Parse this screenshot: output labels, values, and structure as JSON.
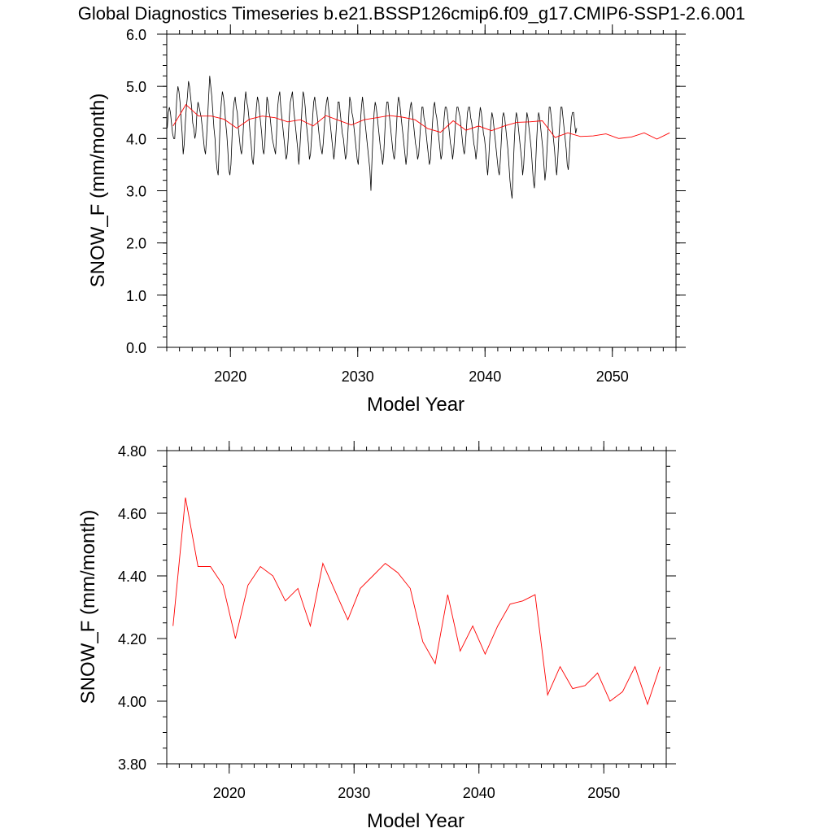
{
  "title": "Global Diagnostics Timeseries b.e21.BSSP126cmip6.f09_g17.CMIP6-SSP1-2.6.001",
  "colors": {
    "monthly": "#000000",
    "annual": "#ff0000"
  },
  "chart_data": [
    {
      "type": "line",
      "xlabel": "Model Year",
      "ylabel": "SNOW_F (mm/month)",
      "xlim": [
        2015,
        2055
      ],
      "ylim": [
        0,
        6
      ],
      "xticks": [
        2020,
        2030,
        2040,
        2050
      ],
      "yticks": [
        0,
        1,
        2,
        3,
        4,
        5,
        6
      ],
      "ytick_labels": [
        "0.0",
        "1.0",
        "2.0",
        "3.0",
        "4.0",
        "5.0",
        "6.0"
      ],
      "grid": false,
      "series": [
        {
          "kind": "monthly",
          "x_start": 2015.04,
          "x_step": 0.0833333,
          "values": [
            4.2,
            4.5,
            4.6,
            4.5,
            4.3,
            4.1,
            4.0,
            4.0,
            4.4,
            4.8,
            5.0,
            4.9,
            4.7,
            4.4,
            4.1,
            3.7,
            3.9,
            4.3,
            4.6,
            4.8,
            5.1,
            5.0,
            4.8,
            4.6,
            4.3,
            4.2,
            4.0,
            4.1,
            4.5,
            4.7,
            4.6,
            4.5,
            4.4,
            4.2,
            4.0,
            3.8,
            3.7,
            4.0,
            4.4,
            4.8,
            5.2,
            5.0,
            4.8,
            4.5,
            4.2,
            4.0,
            3.6,
            3.4,
            3.3,
            3.8,
            4.4,
            4.7,
            4.9,
            4.8,
            4.6,
            4.3,
            4.1,
            3.8,
            3.4,
            3.3,
            3.5,
            4.0,
            4.5,
            4.7,
            4.8,
            4.6,
            4.5,
            4.2,
            4.0,
            3.8,
            3.7,
            3.9,
            4.3,
            4.7,
            4.9,
            4.7,
            4.6,
            4.4,
            4.1,
            3.9,
            3.6,
            3.5,
            3.8,
            4.3,
            4.6,
            4.8,
            4.7,
            4.5,
            4.3,
            4.1,
            3.8,
            3.7,
            3.9,
            4.4,
            4.8,
            4.7,
            4.5,
            4.4,
            4.2,
            4.0,
            3.9,
            3.8,
            3.7,
            4.1,
            4.6,
            4.8,
            4.9,
            4.6,
            4.4,
            4.2,
            4.0,
            3.8,
            3.6,
            3.7,
            4.0,
            4.4,
            4.7,
            4.8,
            4.9,
            4.6,
            4.4,
            4.2,
            4.0,
            3.8,
            3.5,
            3.8,
            4.2,
            4.6,
            4.9,
            4.8,
            4.6,
            4.3,
            4.1,
            3.9,
            3.6,
            3.7,
            4.0,
            4.4,
            4.7,
            4.8,
            4.6,
            4.5,
            4.3,
            4.1,
            3.9,
            3.8,
            3.7,
            3.9,
            4.2,
            4.5,
            4.7,
            4.8,
            4.6,
            4.4,
            4.2,
            4.0,
            3.8,
            3.6,
            3.8,
            4.1,
            4.4,
            4.7,
            4.7,
            4.5,
            4.3,
            4.1,
            4.0,
            3.8,
            3.6,
            3.7,
            4.0,
            4.4,
            4.8,
            4.7,
            4.5,
            4.4,
            4.2,
            4.0,
            3.8,
            3.6,
            3.5,
            3.9,
            4.3,
            4.6,
            4.8,
            4.6,
            4.4,
            4.2,
            4.0,
            3.8,
            3.6,
            3.4,
            3.0,
            3.6,
            4.1,
            4.5,
            4.7,
            4.6,
            4.4,
            4.2,
            4.0,
            3.8,
            3.7,
            3.5,
            3.7,
            4.1,
            4.5,
            4.7,
            4.7,
            4.5,
            4.3,
            4.1,
            3.9,
            3.7,
            3.6,
            3.8,
            4.2,
            4.6,
            4.8,
            4.7,
            4.5,
            4.3,
            4.1,
            3.9,
            3.7,
            3.5,
            3.7,
            4.1,
            4.4,
            4.6,
            4.7,
            4.5,
            4.3,
            4.1,
            3.9,
            3.8,
            3.6,
            3.7,
            4.0,
            4.3,
            4.6,
            4.6,
            4.4,
            4.3,
            4.1,
            3.9,
            3.7,
            3.5,
            3.6,
            4.0,
            4.3,
            4.6,
            4.7,
            4.5,
            4.4,
            4.2,
            4.0,
            3.8,
            3.6,
            3.7,
            4.1,
            4.4,
            4.6,
            4.6,
            4.5,
            4.3,
            4.1,
            3.9,
            3.8,
            3.6,
            3.8,
            4.1,
            4.4,
            4.6,
            4.6,
            4.5,
            4.4,
            4.2,
            4.0,
            3.8,
            3.7,
            3.9,
            4.2,
            4.5,
            4.6,
            4.6,
            4.4,
            4.3,
            4.1,
            3.9,
            3.8,
            3.6,
            3.8,
            4.1,
            4.4,
            4.6,
            4.5,
            4.3,
            4.1,
            4.0,
            3.8,
            3.5,
            3.3,
            3.6,
            4.0,
            4.3,
            4.5,
            4.4,
            4.2,
            4.0,
            3.8,
            3.6,
            3.4,
            3.3,
            3.6,
            4.0,
            4.4,
            4.5,
            4.4,
            4.2,
            4.0,
            3.8,
            3.5,
            3.2,
            3.0,
            2.85,
            3.4,
            3.9,
            4.3,
            4.5,
            4.4,
            4.2,
            4.0,
            3.8,
            3.6,
            3.3,
            3.5,
            3.9,
            4.2,
            4.5,
            4.4,
            4.2,
            4.0,
            3.8,
            3.5,
            3.2,
            3.05,
            3.4,
            3.9,
            4.3,
            4.5,
            4.4,
            4.2,
            4.0,
            3.8,
            3.5,
            3.2,
            3.4,
            3.8,
            4.2,
            4.6,
            4.6,
            4.4,
            4.2,
            4.0,
            3.8,
            3.5,
            3.3,
            3.6,
            4.0,
            4.3,
            4.6,
            4.6,
            4.4,
            4.2,
            4.0,
            3.8,
            3.5,
            3.4,
            3.7,
            4.1,
            4.4,
            4.5,
            4.5,
            4.3,
            4.1,
            4.2
          ]
        },
        {
          "kind": "annual",
          "x": [
            2015.5,
            2016.5,
            2017.5,
            2018.5,
            2019.5,
            2020.5,
            2021.5,
            2022.5,
            2023.5,
            2024.5,
            2025.5,
            2026.5,
            2027.5,
            2028.5,
            2029.5,
            2030.5,
            2031.5,
            2032.5,
            2033.5,
            2034.5,
            2035.5,
            2036.5,
            2037.5,
            2038.5,
            2039.5,
            2040.5,
            2041.5,
            2042.5,
            2043.5,
            2044.5,
            2045.5,
            2046.5,
            2047.5,
            2048.5,
            2049.5,
            2050.5,
            2051.5,
            2052.5,
            2053.5,
            2054.5
          ],
          "values": [
            4.24,
            4.65,
            4.43,
            4.43,
            4.37,
            4.2,
            4.37,
            4.43,
            4.4,
            4.32,
            4.36,
            4.24,
            4.44,
            4.35,
            4.26,
            4.36,
            4.4,
            4.44,
            4.41,
            4.36,
            4.19,
            4.12,
            4.34,
            4.16,
            4.24,
            4.15,
            4.24,
            4.31,
            4.32,
            4.34,
            4.02,
            4.11,
            4.04,
            4.05,
            4.09,
            4.0,
            4.03,
            4.11,
            3.99,
            4.11
          ]
        }
      ]
    },
    {
      "type": "line",
      "xlabel": "Model Year",
      "ylabel": "SNOW_F (mm/month)",
      "xlim": [
        2015,
        2055
      ],
      "ylim": [
        3.8,
        4.8
      ],
      "xticks": [
        2020,
        2030,
        2040,
        2050
      ],
      "yticks": [
        3.8,
        4.0,
        4.2,
        4.4,
        4.6,
        4.8
      ],
      "ytick_labels": [
        "3.80",
        "4.00",
        "4.20",
        "4.40",
        "4.60",
        "4.80"
      ],
      "grid": false,
      "series": [
        {
          "kind": "annual",
          "x": [
            2015.5,
            2016.5,
            2017.5,
            2018.5,
            2019.5,
            2020.5,
            2021.5,
            2022.5,
            2023.5,
            2024.5,
            2025.5,
            2026.5,
            2027.5,
            2028.5,
            2029.5,
            2030.5,
            2031.5,
            2032.5,
            2033.5,
            2034.5,
            2035.5,
            2036.5,
            2037.5,
            2038.5,
            2039.5,
            2040.5,
            2041.5,
            2042.5,
            2043.5,
            2044.5,
            2045.5,
            2046.5,
            2047.5,
            2048.5,
            2049.5,
            2050.5,
            2051.5,
            2052.5,
            2053.5,
            2054.5
          ],
          "values": [
            4.24,
            4.65,
            4.43,
            4.43,
            4.37,
            4.2,
            4.37,
            4.43,
            4.4,
            4.32,
            4.36,
            4.24,
            4.44,
            4.35,
            4.26,
            4.36,
            4.4,
            4.44,
            4.41,
            4.36,
            4.19,
            4.12,
            4.34,
            4.16,
            4.24,
            4.15,
            4.24,
            4.31,
            4.32,
            4.34,
            4.02,
            4.11,
            4.04,
            4.05,
            4.09,
            4.0,
            4.03,
            4.11,
            3.99,
            4.11
          ]
        }
      ]
    }
  ]
}
